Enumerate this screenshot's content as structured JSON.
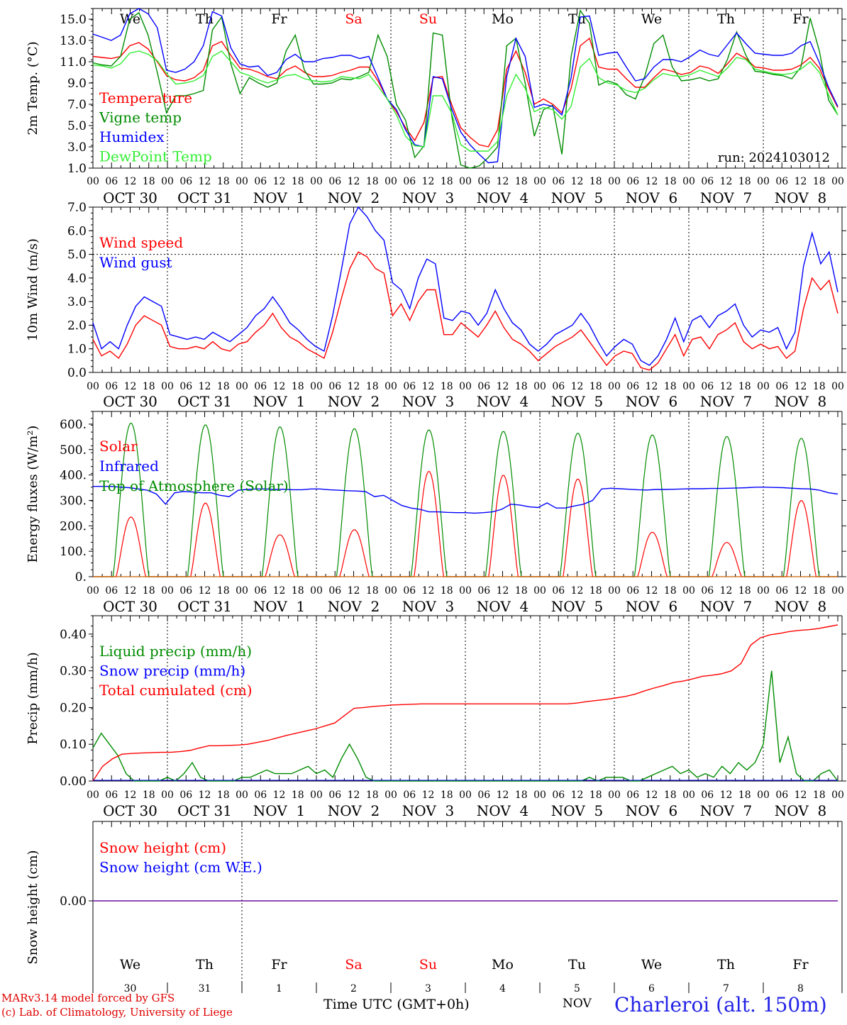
{
  "footer": {
    "credit_line_1": "MARv3.14 model forced by GFS",
    "credit_line_2": "(c) Lab. of Climatology, University of Liege",
    "time_axis_label": "Time UTC (GMT+0h)",
    "month_label": "NOV",
    "station": "Charleroi (alt. 150m)"
  },
  "colors": {
    "red": "#ff0000",
    "green": "#008c00",
    "blue": "#0000ff",
    "lightgreen": "#33ee33",
    "purple": "#6a0da0"
  },
  "time_axis": {
    "hour_ticks": [
      "00",
      "06",
      "12",
      "18"
    ],
    "final_tick": "00",
    "dates": [
      "OCT 30",
      "OCT 31",
      "NOV  1",
      "NOV  2",
      "NOV  3",
      "NOV  4",
      "NOV  5",
      "NOV  6",
      "NOV  7",
      "NOV  8"
    ],
    "weekdays": [
      "We",
      "Th",
      "Fr",
      "Sa",
      "Su",
      "Mo",
      "Tu",
      "We",
      "Th",
      "Fr"
    ],
    "weekend_indices": [
      3,
      4
    ],
    "day_numbers": [
      "30",
      "31",
      "1",
      "2",
      "3",
      "4",
      "5",
      "6",
      "7",
      "8"
    ]
  },
  "chart_data": [
    {
      "type": "line",
      "ylabel": "2m Temp. (°C)",
      "ylim": [
        1,
        16
      ],
      "yticks": [
        "1.0",
        "3.0",
        "5.0",
        "7.0",
        "9.0",
        "11.0",
        "13.0",
        "15.0"
      ],
      "annotation": "run: 2024103012",
      "series": [
        {
          "name": "Temperature",
          "color": "red",
          "values": [
            11.5,
            11.4,
            11.3,
            11.5,
            12.5,
            12.8,
            12.2,
            11.0,
            9.7,
            9.3,
            9.2,
            9.5,
            10.2,
            12.5,
            12.9,
            11.6,
            10.4,
            10.3,
            10.0,
            9.6,
            9.4,
            10.2,
            10.6,
            10.0,
            9.6,
            9.6,
            9.7,
            10.0,
            10.2,
            10.5,
            10.5,
            9.2,
            7.5,
            6.3,
            4.8,
            3.6,
            5.3,
            9.5,
            9.6,
            7.0,
            4.8,
            3.9,
            3.2,
            3.0,
            4.6,
            10.3,
            12.0,
            10.0,
            7.0,
            7.5,
            7.0,
            6.2,
            8.5,
            12.5,
            13.2,
            10.5,
            10.3,
            10.3,
            9.4,
            8.6,
            8.6,
            9.5,
            10.3,
            10.1,
            9.8,
            10.0,
            10.6,
            10.4,
            9.9,
            10.8,
            11.8,
            11.3,
            10.5,
            10.4,
            10.2,
            10.2,
            10.3,
            10.7,
            11.4,
            10.4,
            8.4,
            6.7
          ]
        },
        {
          "name": "Vigne temp",
          "color": "green",
          "values": [
            10.9,
            10.7,
            10.6,
            11.5,
            15.0,
            15.6,
            13.5,
            10.0,
            6.2,
            7.8,
            7.8,
            8.0,
            8.3,
            14.0,
            15.2,
            10.8,
            8.0,
            9.5,
            9.0,
            8.6,
            9.0,
            12.0,
            13.5,
            10.2,
            8.9,
            8.9,
            9.0,
            9.4,
            9.3,
            9.6,
            10.0,
            13.5,
            11.5,
            7.0,
            5.5,
            2.0,
            3.1,
            13.7,
            13.5,
            6.0,
            1.3,
            0.7,
            1.2,
            2.0,
            3.0,
            12.5,
            13.2,
            9.0,
            4.0,
            6.5,
            6.9,
            2.3,
            11.5,
            15.8,
            14.6,
            8.8,
            9.2,
            8.9,
            7.9,
            7.5,
            9.6,
            12.7,
            13.5,
            10.5,
            9.2,
            9.3,
            9.5,
            9.2,
            9.4,
            11.2,
            13.8,
            11.6,
            10.1,
            10.0,
            9.8,
            9.7,
            9.4,
            10.5,
            15.1,
            12.0,
            7.4,
            6.0
          ]
        },
        {
          "name": "Humidex",
          "color": "blue",
          "values": [
            13.6,
            13.3,
            13.0,
            13.5,
            15.5,
            16.3,
            15.5,
            14.2,
            10.2,
            10.0,
            10.3,
            11.0,
            12.5,
            15.7,
            15.3,
            12.3,
            10.8,
            10.5,
            10.6,
            9.7,
            10.0,
            11.2,
            11.7,
            11.0,
            11.0,
            11.3,
            11.4,
            11.6,
            11.6,
            11.3,
            11.5,
            9.5,
            7.5,
            6.5,
            4.6,
            3.2,
            3.0,
            9.6,
            9.4,
            6.6,
            4.4,
            3.2,
            2.3,
            1.5,
            1.6,
            9.6,
            13.2,
            11.5,
            6.7,
            7.0,
            6.8,
            6.0,
            9.5,
            15.2,
            15.3,
            11.6,
            11.8,
            11.9,
            10.5,
            9.2,
            9.4,
            10.5,
            11.2,
            11.2,
            11.0,
            11.5,
            12.1,
            11.7,
            11.5,
            12.6,
            13.7,
            12.7,
            11.8,
            11.7,
            11.6,
            11.6,
            11.8,
            12.5,
            12.9,
            10.9,
            8.6,
            6.8
          ]
        },
        {
          "name": "DewPoint Temp",
          "color": "lightgreen",
          "values": [
            10.7,
            10.6,
            10.4,
            10.8,
            11.8,
            12.0,
            11.7,
            11.1,
            9.9,
            8.9,
            9.0,
            9.2,
            9.7,
            11.5,
            12.0,
            11.0,
            10.0,
            9.7,
            9.3,
            9.0,
            9.3,
            9.7,
            9.8,
            9.4,
            9.2,
            9.1,
            9.2,
            9.6,
            9.5,
            9.4,
            9.8,
            8.7,
            7.5,
            6.0,
            4.0,
            3.1,
            3.0,
            7.8,
            7.8,
            6.2,
            3.2,
            2.6,
            2.6,
            2.6,
            3.5,
            7.8,
            9.8,
            8.5,
            6.3,
            6.7,
            6.5,
            5.6,
            6.8,
            10.5,
            11.3,
            9.5,
            9.0,
            8.8,
            8.3,
            8.1,
            8.5,
            9.3,
            9.9,
            9.7,
            9.6,
            9.8,
            10.2,
            9.9,
            9.6,
            10.4,
            11.4,
            11.2,
            10.3,
            10.1,
            9.9,
            9.8,
            9.9,
            10.3,
            11.0,
            10.0,
            7.9,
            6.0
          ]
        }
      ]
    },
    {
      "type": "line",
      "ylabel": "10m Wind (m/s)",
      "ylim": [
        0,
        7
      ],
      "yticks": [
        "0.0",
        "1.0",
        "2.0",
        "3.0",
        "4.0",
        "5.0",
        "6.0",
        "7.0"
      ],
      "series": [
        {
          "name": "Wind speed",
          "color": "red",
          "values": [
            1.4,
            0.7,
            0.9,
            0.6,
            1.2,
            2.0,
            2.4,
            2.2,
            2.0,
            1.1,
            1.0,
            1.0,
            1.1,
            1.0,
            1.3,
            1.0,
            0.9,
            1.2,
            1.3,
            1.7,
            2.0,
            2.5,
            1.9,
            1.5,
            1.3,
            1.0,
            0.8,
            0.6,
            1.7,
            3.1,
            4.4,
            5.1,
            4.9,
            4.4,
            4.2,
            2.4,
            2.9,
            2.2,
            3.0,
            3.5,
            3.5,
            1.6,
            1.6,
            2.1,
            1.8,
            1.5,
            2.0,
            2.6,
            1.9,
            1.4,
            1.2,
            0.9,
            0.5,
            0.8,
            1.1,
            1.3,
            1.5,
            1.8,
            1.3,
            0.8,
            0.3,
            0.7,
            0.9,
            0.8,
            0.2,
            0.1,
            0.4,
            1.0,
            1.6,
            0.7,
            1.4,
            1.5,
            1.0,
            1.6,
            1.8,
            2.1,
            1.3,
            1.0,
            1.2,
            1.0,
            1.1,
            0.6,
            0.9,
            2.7,
            4.0,
            3.5,
            3.9,
            2.5
          ]
        },
        {
          "name": "Wind gust",
          "color": "blue",
          "values": [
            2.1,
            1.0,
            1.3,
            1.0,
            2.0,
            2.8,
            3.2,
            3.0,
            2.8,
            1.6,
            1.5,
            1.4,
            1.5,
            1.4,
            1.7,
            1.5,
            1.3,
            1.6,
            1.9,
            2.4,
            2.7,
            3.2,
            2.7,
            2.1,
            1.8,
            1.4,
            1.1,
            0.9,
            2.4,
            4.3,
            6.3,
            7.0,
            6.6,
            6.0,
            5.6,
            3.8,
            3.5,
            2.7,
            4.0,
            4.8,
            4.6,
            2.3,
            2.2,
            2.6,
            2.5,
            2.0,
            2.5,
            3.5,
            2.7,
            2.1,
            1.8,
            1.2,
            0.9,
            1.2,
            1.6,
            1.8,
            2.0,
            2.5,
            2.0,
            1.3,
            0.7,
            1.1,
            1.4,
            1.2,
            0.5,
            0.3,
            0.7,
            1.4,
            2.3,
            1.3,
            2.2,
            2.4,
            1.9,
            2.4,
            2.6,
            2.9,
            2.0,
            1.5,
            1.8,
            1.7,
            1.9,
            1.0,
            1.7,
            4.5,
            5.9,
            4.6,
            5.1,
            3.4
          ]
        }
      ]
    },
    {
      "type": "line",
      "ylabel": "Energy fluxes (W/m²)",
      "ylim": [
        0,
        650
      ],
      "yticks": [
        "0.",
        "100.",
        "200.",
        "300.",
        "400.",
        "500.",
        "600."
      ],
      "series": [
        {
          "name": "Solar",
          "color": "red",
          "peaks": [
            235,
            290,
            165,
            185,
            415,
            400,
            385,
            175,
            135,
            300
          ]
        },
        {
          "name": "Infrared",
          "color": "blue",
          "values": [
            355,
            355,
            355,
            352,
            350,
            345,
            340,
            325,
            285,
            330,
            335,
            333,
            330,
            330,
            320,
            315,
            340,
            343,
            345,
            345,
            343,
            344,
            342,
            342,
            345,
            345,
            342,
            340,
            338,
            337,
            335,
            315,
            320,
            300,
            280,
            270,
            265,
            255,
            255,
            253,
            252,
            252,
            250,
            252,
            255,
            265,
            285,
            282,
            275,
            272,
            290,
            270,
            270,
            278,
            285,
            300,
            345,
            348,
            346,
            344,
            342,
            341,
            343,
            343,
            344,
            345,
            346,
            346,
            347,
            347,
            348,
            349,
            350,
            352,
            352,
            351,
            350,
            348,
            346,
            345,
            340,
            330,
            325
          ]
        },
        {
          "name": "Top of Atmosphere (Solar)",
          "color": "green",
          "peaks": [
            605,
            598,
            590,
            583,
            578,
            572,
            565,
            558,
            552,
            545
          ]
        }
      ]
    },
    {
      "type": "line",
      "ylabel": "Precip (mm/h)",
      "ylim": [
        0,
        0.45
      ],
      "yticks": [
        "0.00",
        "0.10",
        "0.20",
        "0.30",
        "0.40"
      ],
      "series": [
        {
          "name": "Liquid precip (mm/h)",
          "color": "green",
          "values": [
            0.09,
            0.13,
            0.1,
            0.07,
            0.02,
            0.0,
            0.0,
            0.0,
            0.0,
            0.01,
            0.0,
            0.02,
            0.05,
            0.01,
            0.0,
            0.0,
            0.0,
            0.0,
            0.01,
            0.01,
            0.02,
            0.03,
            0.02,
            0.02,
            0.02,
            0.03,
            0.04,
            0.02,
            0.03,
            0.01,
            0.06,
            0.1,
            0.06,
            0.01,
            0.0,
            0.0,
            0.0,
            0.0,
            0.0,
            0.0,
            0.0,
            0.0,
            0.0,
            0.0,
            0.0,
            0.0,
            0.0,
            0.0,
            0.0,
            0.0,
            0.0,
            0.0,
            0.0,
            0.0,
            0.0,
            0.0,
            0.0,
            0.0,
            0.0,
            0.0,
            0.01,
            0.0,
            0.01,
            0.01,
            0.01,
            0.0,
            0.0,
            0.01,
            0.02,
            0.03,
            0.04,
            0.02,
            0.03,
            0.01,
            0.02,
            0.01,
            0.04,
            0.02,
            0.05,
            0.03,
            0.05,
            0.1,
            0.3,
            0.05,
            0.12,
            0.02,
            0.0,
            0.0,
            0.02,
            0.03,
            0.0
          ]
        },
        {
          "name": "Snow precip (mm/h)",
          "color": "blue",
          "values": [
            0,
            0
          ]
        },
        {
          "name": "Total cumulated (cm)",
          "color": "red",
          "values": [
            0.0,
            0.04,
            0.06,
            0.073,
            0.075,
            0.076,
            0.077,
            0.078,
            0.078,
            0.08,
            0.083,
            0.09,
            0.096,
            0.096,
            0.097,
            0.098,
            0.1,
            0.105,
            0.11,
            0.117,
            0.124,
            0.13,
            0.136,
            0.142,
            0.15,
            0.158,
            0.178,
            0.198,
            0.2,
            0.203,
            0.205,
            0.207,
            0.208,
            0.209,
            0.21,
            0.21,
            0.21,
            0.21,
            0.21,
            0.21,
            0.21,
            0.21,
            0.21,
            0.21,
            0.21,
            0.21,
            0.21,
            0.21,
            0.21,
            0.21,
            0.212,
            0.216,
            0.219,
            0.222,
            0.226,
            0.23,
            0.236,
            0.245,
            0.253,
            0.26,
            0.268,
            0.272,
            0.278,
            0.285,
            0.288,
            0.292,
            0.3,
            0.32,
            0.37,
            0.39,
            0.398,
            0.402,
            0.407,
            0.41,
            0.412,
            0.415,
            0.42,
            0.425
          ]
        }
      ]
    },
    {
      "type": "line",
      "ylabel": "Snow height (cm)",
      "yticks": [
        "0.00"
      ],
      "series": [
        {
          "name": "Snow height (cm)",
          "color": "red",
          "values": [
            0,
            0
          ]
        },
        {
          "name": "Snow height (cm W.E.)",
          "color": "blue",
          "values": [
            0,
            0
          ]
        }
      ]
    }
  ]
}
